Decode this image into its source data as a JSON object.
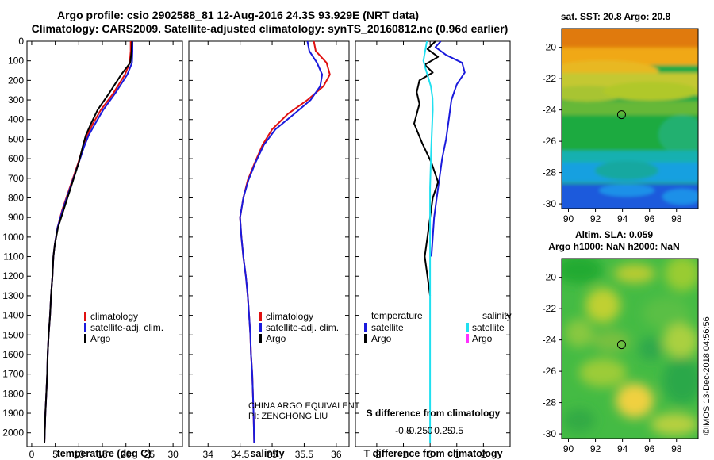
{
  "header": {
    "line1": "Argo profile: csio 2902588_81 12-Aug-2016 24.3S 93.929E (NRT data)",
    "line2": "Climatology: CARS2009. Satellite-adjusted climatology: synTS_20160812.nc (0.96d earlier)"
  },
  "colors": {
    "climatology": "#e01010",
    "satellite": "#1a1adc",
    "argo": "#000000",
    "satellite_salinity": "#20e0f0",
    "argo_salinity": "#ff30ff"
  },
  "chart_data": [
    {
      "type": "line",
      "panel": "temperature",
      "xlabel": "temperature (deg C)",
      "ylabel": "",
      "xlim": [
        -1,
        32
      ],
      "ylim": [
        2070,
        0
      ],
      "x_ticks": [
        0,
        5,
        10,
        15,
        20,
        25,
        30
      ],
      "y_ticks": [
        0,
        100,
        200,
        300,
        400,
        500,
        600,
        700,
        800,
        900,
        1000,
        1100,
        1200,
        1300,
        1400,
        1500,
        1600,
        1700,
        1800,
        1900,
        2000
      ],
      "legend": {
        "placement": "lower-right",
        "entries": [
          "climatology",
          "satellite-adj. clim.",
          "Argo"
        ]
      },
      "series": [
        {
          "name": "climatology",
          "color": "#e01010",
          "x": [
            21.0,
            21.0,
            20.8,
            19.8,
            17.2,
            14.7,
            13.0,
            11.8,
            10.9,
            9.9,
            8.2,
            6.5,
            5.5,
            4.9,
            4.6,
            4.4,
            4.1,
            3.9,
            3.6,
            3.4,
            3.3,
            3.1,
            2.9,
            2.7
          ],
          "y": [
            0,
            50,
            110,
            170,
            270,
            350,
            420,
            480,
            540,
            620,
            740,
            860,
            950,
            1040,
            1100,
            1200,
            1300,
            1400,
            1500,
            1600,
            1700,
            1800,
            1900,
            2050
          ]
        },
        {
          "name": "satellite-adj. clim.",
          "color": "#1a1adc",
          "x": [
            21.4,
            21.4,
            21.3,
            20.3,
            17.6,
            15.2,
            13.5,
            12.1,
            11.1,
            10.0,
            8.3,
            6.6,
            5.5,
            4.9,
            4.6,
            4.4,
            4.1,
            3.9,
            3.6,
            3.4,
            3.3,
            3.1,
            2.9,
            2.7
          ],
          "y": [
            0,
            50,
            110,
            170,
            270,
            350,
            420,
            480,
            540,
            620,
            740,
            860,
            950,
            1040,
            1100,
            1200,
            1300,
            1400,
            1500,
            1600,
            1700,
            1800,
            1900,
            2050
          ]
        },
        {
          "name": "Argo",
          "color": "#000000",
          "x": [
            21.3,
            21.2,
            20.9,
            19.0,
            16.3,
            14.0,
            12.6,
            11.5,
            10.8,
            10.0,
            8.4,
            6.8,
            5.6,
            4.9,
            4.6,
            4.4,
            4.1,
            3.9,
            3.6,
            3.4,
            3.3,
            3.1,
            2.9,
            2.7
          ],
          "y": [
            0,
            50,
            110,
            170,
            270,
            350,
            420,
            480,
            540,
            620,
            740,
            860,
            950,
            1040,
            1100,
            1200,
            1300,
            1400,
            1500,
            1600,
            1700,
            1800,
            1900,
            2050
          ]
        }
      ]
    },
    {
      "type": "line",
      "panel": "salinity",
      "xlabel": "salinity",
      "ylabel": "",
      "xlim": [
        33.7,
        36.2
      ],
      "ylim": [
        2070,
        0
      ],
      "x_ticks": [
        34,
        34.5,
        35,
        35.5,
        36
      ],
      "legend": {
        "placement": "lower-right",
        "entries": [
          "climatology",
          "satellite-adj. clim.",
          "Argo"
        ]
      },
      "annotation": [
        "CHINA ARGO EQUIVALENT",
        "PI: ZENGHONG LIU"
      ],
      "series": [
        {
          "name": "climatology",
          "color": "#e01010",
          "x": [
            35.65,
            35.68,
            35.85,
            35.9,
            35.8,
            35.55,
            35.25,
            35.0,
            34.85,
            34.73,
            34.62,
            34.55,
            34.5,
            34.52,
            34.55,
            34.59,
            34.62,
            34.64,
            34.66,
            34.67,
            34.69,
            34.7,
            34.71,
            34.72
          ],
          "y": [
            0,
            50,
            110,
            170,
            230,
            300,
            370,
            450,
            530,
            620,
            710,
            800,
            900,
            1000,
            1100,
            1200,
            1300,
            1400,
            1500,
            1600,
            1700,
            1800,
            1900,
            2050
          ]
        },
        {
          "name": "satellite-adj. clim.",
          "color": "#1a1adc",
          "x": [
            35.55,
            35.58,
            35.7,
            35.78,
            35.75,
            35.6,
            35.35,
            35.05,
            34.87,
            34.74,
            34.63,
            34.55,
            34.5,
            34.52,
            34.55,
            34.59,
            34.62,
            34.64,
            34.66,
            34.67,
            34.69,
            34.7,
            34.71,
            34.72
          ],
          "y": [
            0,
            50,
            110,
            170,
            230,
            300,
            370,
            450,
            530,
            620,
            710,
            800,
            900,
            1000,
            1100,
            1200,
            1300,
            1400,
            1500,
            1600,
            1700,
            1800,
            1900,
            2050
          ]
        }
      ]
    },
    {
      "type": "line",
      "panel": "difference",
      "xlabel": "T difference from climatology",
      "ylabel": "",
      "top_axis_label": "S difference from climatology",
      "xlim": [
        -2.8,
        3.0
      ],
      "ylim": [
        2070,
        0
      ],
      "x_ticks": [
        -2,
        -1,
        0,
        1,
        2
      ],
      "top_ticks": [
        "-0.5",
        "-0.25",
        "0",
        "0.25",
        "0.5"
      ],
      "legend": {
        "temperature_title": "temperature",
        "salinity_title": "salinity",
        "temperature_entries": [
          "satellite",
          "Argo"
        ],
        "salinity_entries": [
          "satellite",
          "Argo"
        ]
      },
      "series": [
        {
          "name": "temperature satellite",
          "color": "#1a1adc",
          "x": [
            0.4,
            0.2,
            0.6,
            1.2,
            1.3,
            1.0,
            0.8,
            0.7,
            0.6,
            0.45,
            0.35,
            0.25,
            0.15,
            0.1,
            0.05
          ],
          "y": [
            0,
            30,
            70,
            110,
            160,
            220,
            300,
            400,
            500,
            600,
            700,
            800,
            900,
            1000,
            1100
          ]
        },
        {
          "name": "temperature Argo",
          "color": "#000000",
          "x": [
            0.2,
            -0.1,
            0.3,
            -0.2,
            0.1,
            -0.4,
            -0.5,
            -0.4,
            -0.6,
            -0.3,
            0.05,
            0.3,
            0.1,
            0.0,
            -0.1,
            -0.2,
            -0.1,
            0.0
          ],
          "y": [
            0,
            40,
            80,
            120,
            160,
            200,
            260,
            320,
            420,
            520,
            620,
            720,
            800,
            900,
            1000,
            1100,
            1200,
            1300
          ]
        },
        {
          "name": "salinity satellite",
          "color": "#20e0f0",
          "x": [
            -0.12,
            -0.25,
            -0.15,
            -0.06,
            0.03,
            0.09,
            0.1,
            0.07,
            0.04,
            0.02,
            0.0,
            0.0,
            0.0,
            0.0,
            0.0,
            0.0,
            0.0,
            0.0
          ],
          "y": [
            0,
            100,
            150,
            190,
            230,
            290,
            350,
            450,
            550,
            650,
            750,
            900,
            1100,
            1300,
            1500,
            1700,
            1900,
            2050
          ]
        }
      ]
    },
    {
      "type": "heatmap",
      "panel": "map-sst",
      "title": "sat. SST: 20.8 Argo: 20.8",
      "x_ticks": [
        90,
        92,
        94,
        96,
        98
      ],
      "y_ticks": [
        -20,
        -22,
        -24,
        -26,
        -28,
        -30
      ],
      "xlim": [
        89.5,
        99.6
      ],
      "ylim": [
        -30.3,
        -18.8
      ],
      "marker": {
        "lon": 93.93,
        "lat": -24.3
      }
    },
    {
      "type": "heatmap",
      "panel": "map-sla",
      "title": "Altim. SLA: 0.059",
      "subtitle": "Argo h1000: NaN h2000: NaN",
      "x_ticks": [
        90,
        92,
        94,
        96,
        98
      ],
      "y_ticks": [
        -20,
        -22,
        -24,
        -26,
        -28,
        -30
      ],
      "xlim": [
        89.5,
        99.6
      ],
      "ylim": [
        -30.3,
        -18.8
      ],
      "marker": {
        "lon": 93.93,
        "lat": -24.3
      }
    }
  ],
  "footer": {
    "stamp": "©IMOS 13-Dec-2018 04:56:56"
  }
}
